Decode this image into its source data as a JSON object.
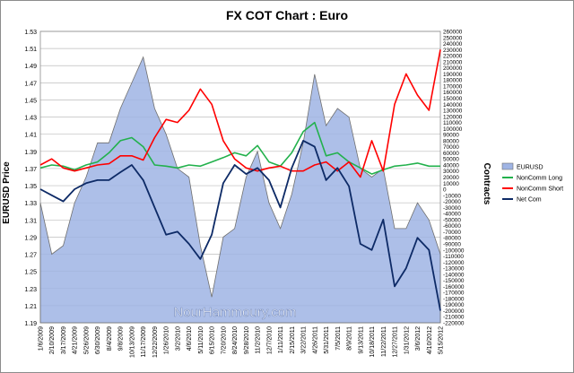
{
  "chart_data": {
    "type": "line",
    "title": "FX COT Chart : Euro",
    "ylabel": "EURUSD Price",
    "y2label": "Contracts",
    "watermark": "NourHammoury.com",
    "ylim": [
      1.19,
      1.53
    ],
    "yticks": [
      "1.19",
      "1.21",
      "1.23",
      "1.25",
      "1.27",
      "1.29",
      "1.31",
      "1.33",
      "1.35",
      "1.37",
      "1.39",
      "1.41",
      "1.43",
      "1.45",
      "1.47",
      "1.49",
      "1.51",
      "1.53"
    ],
    "y2lim": [
      -220000,
      260000
    ],
    "y2ticks": [
      "-220000",
      "-210000",
      "-200000",
      "-190000",
      "-180000",
      "-170000",
      "-160000",
      "-150000",
      "-140000",
      "-130000",
      "-120000",
      "-110000",
      "-100000",
      "-90000",
      "-80000",
      "-70000",
      "-60000",
      "-50000",
      "-40000",
      "-30000",
      "-20000",
      "-10000",
      "0",
      "10000",
      "20000",
      "30000",
      "40000",
      "50000",
      "60000",
      "70000",
      "80000",
      "90000",
      "100000",
      "110000",
      "120000",
      "130000",
      "140000",
      "150000",
      "160000",
      "170000",
      "180000",
      "190000",
      "200000",
      "210000",
      "220000",
      "230000",
      "240000",
      "250000",
      "260000"
    ],
    "x": [
      "1/6/2009",
      "2/10/2009",
      "3/17/2009",
      "4/21/2009",
      "5/26/2009",
      "6/30/2009",
      "8/4/2009",
      "9/8/2009",
      "10/13/2009",
      "11/17/2009",
      "12/22/2009",
      "1/26/2010",
      "3/2/2010",
      "4/6/2010",
      "5/11/2010",
      "6/15/2010",
      "7/20/2010",
      "8/24/2010",
      "9/28/2010",
      "11/2/2010",
      "12/7/2010",
      "1/11/2011",
      "2/15/2011",
      "3/22/2011",
      "4/26/2011",
      "5/31/2011",
      "7/5/2011",
      "8/9/2011",
      "9/13/2011",
      "10/18/2011",
      "11/22/2011",
      "12/27/2011",
      "1/31/2012",
      "3/6/2012",
      "4/10/2012",
      "5/15/2012"
    ],
    "legend_position": "right",
    "series": [
      {
        "name": "EURUSD",
        "type": "area",
        "axis": "left",
        "color": "#9fb4e4",
        "values": [
          1.33,
          1.27,
          1.28,
          1.33,
          1.36,
          1.4,
          1.4,
          1.44,
          1.47,
          1.5,
          1.44,
          1.41,
          1.37,
          1.36,
          1.28,
          1.22,
          1.29,
          1.3,
          1.36,
          1.39,
          1.33,
          1.3,
          1.34,
          1.4,
          1.48,
          1.42,
          1.44,
          1.43,
          1.37,
          1.36,
          1.37,
          1.3,
          1.3,
          1.33,
          1.31,
          1.27
        ]
      },
      {
        "name": "NonComm Long",
        "type": "line",
        "axis": "right",
        "color": "#22b14c",
        "values": [
          35000,
          40000,
          38000,
          32000,
          40000,
          45000,
          60000,
          80000,
          85000,
          70000,
          40000,
          38000,
          35000,
          40000,
          38000,
          45000,
          52000,
          60000,
          55000,
          72000,
          45000,
          38000,
          60000,
          95000,
          110000,
          55000,
          60000,
          45000,
          35000,
          25000,
          32000,
          38000,
          40000,
          43000,
          38000,
          38000
        ]
      },
      {
        "name": "NonComm Short",
        "type": "line",
        "axis": "right",
        "color": "#ff0000",
        "values": [
          40000,
          50000,
          35000,
          30000,
          35000,
          40000,
          42000,
          55000,
          55000,
          48000,
          85000,
          115000,
          110000,
          130000,
          165000,
          140000,
          80000,
          50000,
          35000,
          30000,
          35000,
          38000,
          30000,
          30000,
          40000,
          45000,
          30000,
          45000,
          20000,
          80000,
          30000,
          140000,
          190000,
          155000,
          130000,
          230000
        ]
      },
      {
        "name": "Net Com",
        "type": "line",
        "axis": "right",
        "color": "#0d2a66",
        "values": [
          0,
          -10000,
          -20000,
          0,
          10000,
          15000,
          15000,
          28000,
          40000,
          15000,
          -30000,
          -75000,
          -70000,
          -90000,
          -115000,
          -75000,
          10000,
          40000,
          25000,
          35000,
          15000,
          -30000,
          35000,
          80000,
          70000,
          15000,
          35000,
          5000,
          -90000,
          -100000,
          -50000,
          -160000,
          -130000,
          -80000,
          -100000,
          -200000
        ]
      }
    ]
  }
}
